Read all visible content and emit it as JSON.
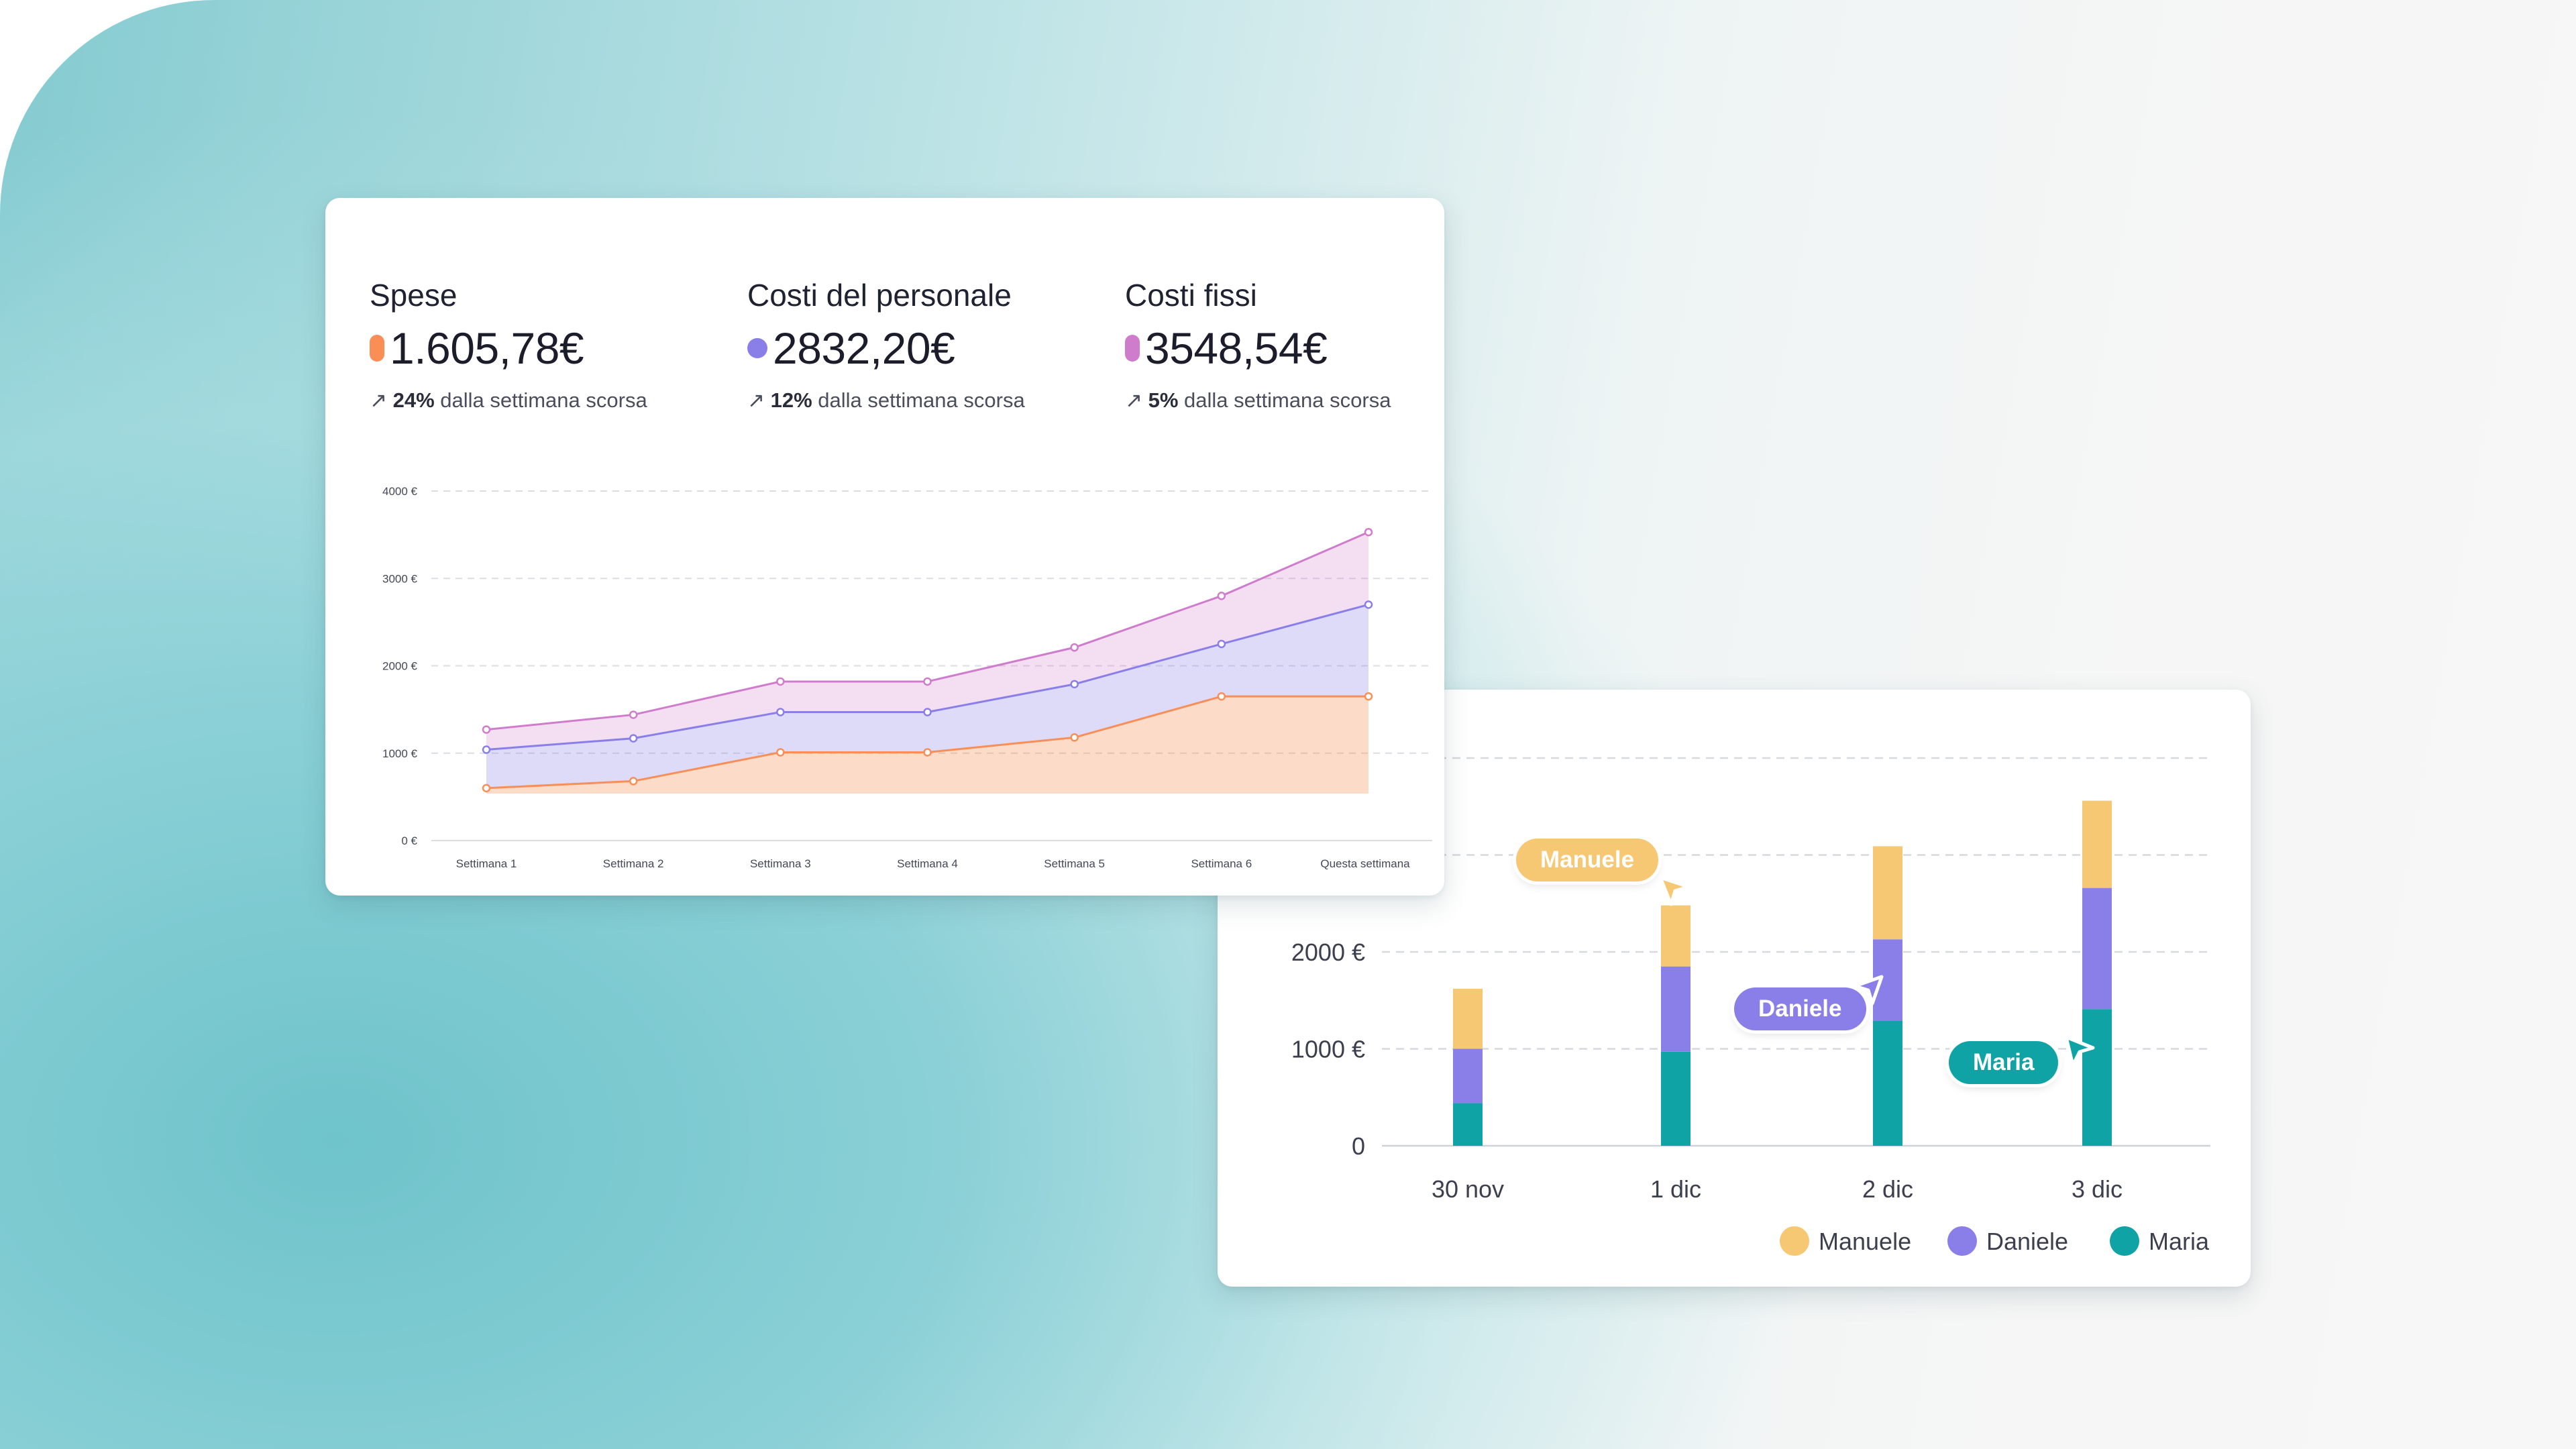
{
  "colors": {
    "spese": "#f98e57",
    "personale": "#8a7fe8",
    "fissi": "#cf7ccd",
    "manuele": "#f7c874",
    "daniele": "#8a7fe8",
    "maria": "#0fa3a6"
  },
  "kpis": [
    {
      "label": "Spese",
      "value": "1.605,78€",
      "pct": "24%",
      "note": " dalla settimana scorsa",
      "color": "#f98e57",
      "arrow": "↗"
    },
    {
      "label": "Costi del personale",
      "value": "2832,20€",
      "pct": "12%",
      "note": " dalla settimana scorsa",
      "color": "#8a7fe8",
      "arrow": "↗"
    },
    {
      "label": "Costi fissi",
      "value": "3548,54€",
      "pct": "5%",
      "note": " dalla settimana scorsa",
      "color": "#cf7ccd",
      "arrow": "↗"
    }
  ],
  "chart_data": [
    {
      "type": "area",
      "stacked": true,
      "categories": [
        "Settimana 1",
        "Settimana 2",
        "Settimana 3",
        "Settimana 4",
        "Settimana 5",
        "Settimana 6",
        "Questa settimana"
      ],
      "y_ticks": [
        "0 €",
        "1000 €",
        "2000 €",
        "3000 €",
        "4000 €"
      ],
      "ylim": [
        0,
        4000
      ],
      "grid": true,
      "series": [
        {
          "key": "spese",
          "values": [
            600,
            680,
            1010,
            1010,
            1180,
            1650,
            1650
          ],
          "color": "#f98e57"
        },
        {
          "key": "personale",
          "values": [
            1040,
            1170,
            1470,
            1470,
            1790,
            2250,
            2700
          ],
          "color": "#8a7fe8"
        },
        {
          "key": "fissi",
          "values": [
            1270,
            1440,
            1820,
            1820,
            2210,
            2800,
            3530
          ],
          "color": "#cf7ccd"
        }
      ]
    },
    {
      "type": "bar",
      "stacked": true,
      "categories": [
        "30 nov",
        "1 dic",
        "2 dic",
        "3 dic"
      ],
      "y_ticks": [
        "0",
        "1000 €",
        "2000 €"
      ],
      "ylim": [
        0,
        4200
      ],
      "grid": true,
      "legend_position": "bottom-right",
      "series": [
        {
          "name": "Maria",
          "values": [
            440,
            970,
            1290,
            1410
          ],
          "color": "#0fa3a6"
        },
        {
          "name": "Daniele",
          "values": [
            560,
            880,
            840,
            1250
          ],
          "color": "#8a7fe8"
        },
        {
          "name": "Manuele",
          "values": [
            620,
            630,
            960,
            900
          ],
          "color": "#f7c874"
        }
      ],
      "legend": [
        "Manuele",
        "Daniele",
        "Maria"
      ],
      "callouts": [
        {
          "name": "Manuele",
          "color": "#f7c874",
          "cursor_color": "#f7c874"
        },
        {
          "name": "Daniele",
          "color": "#8a7fe8",
          "cursor_color": "#8a7fe8"
        },
        {
          "name": "Maria",
          "color": "#0fa3a6",
          "cursor_color": "#0fa3a6"
        }
      ]
    }
  ]
}
